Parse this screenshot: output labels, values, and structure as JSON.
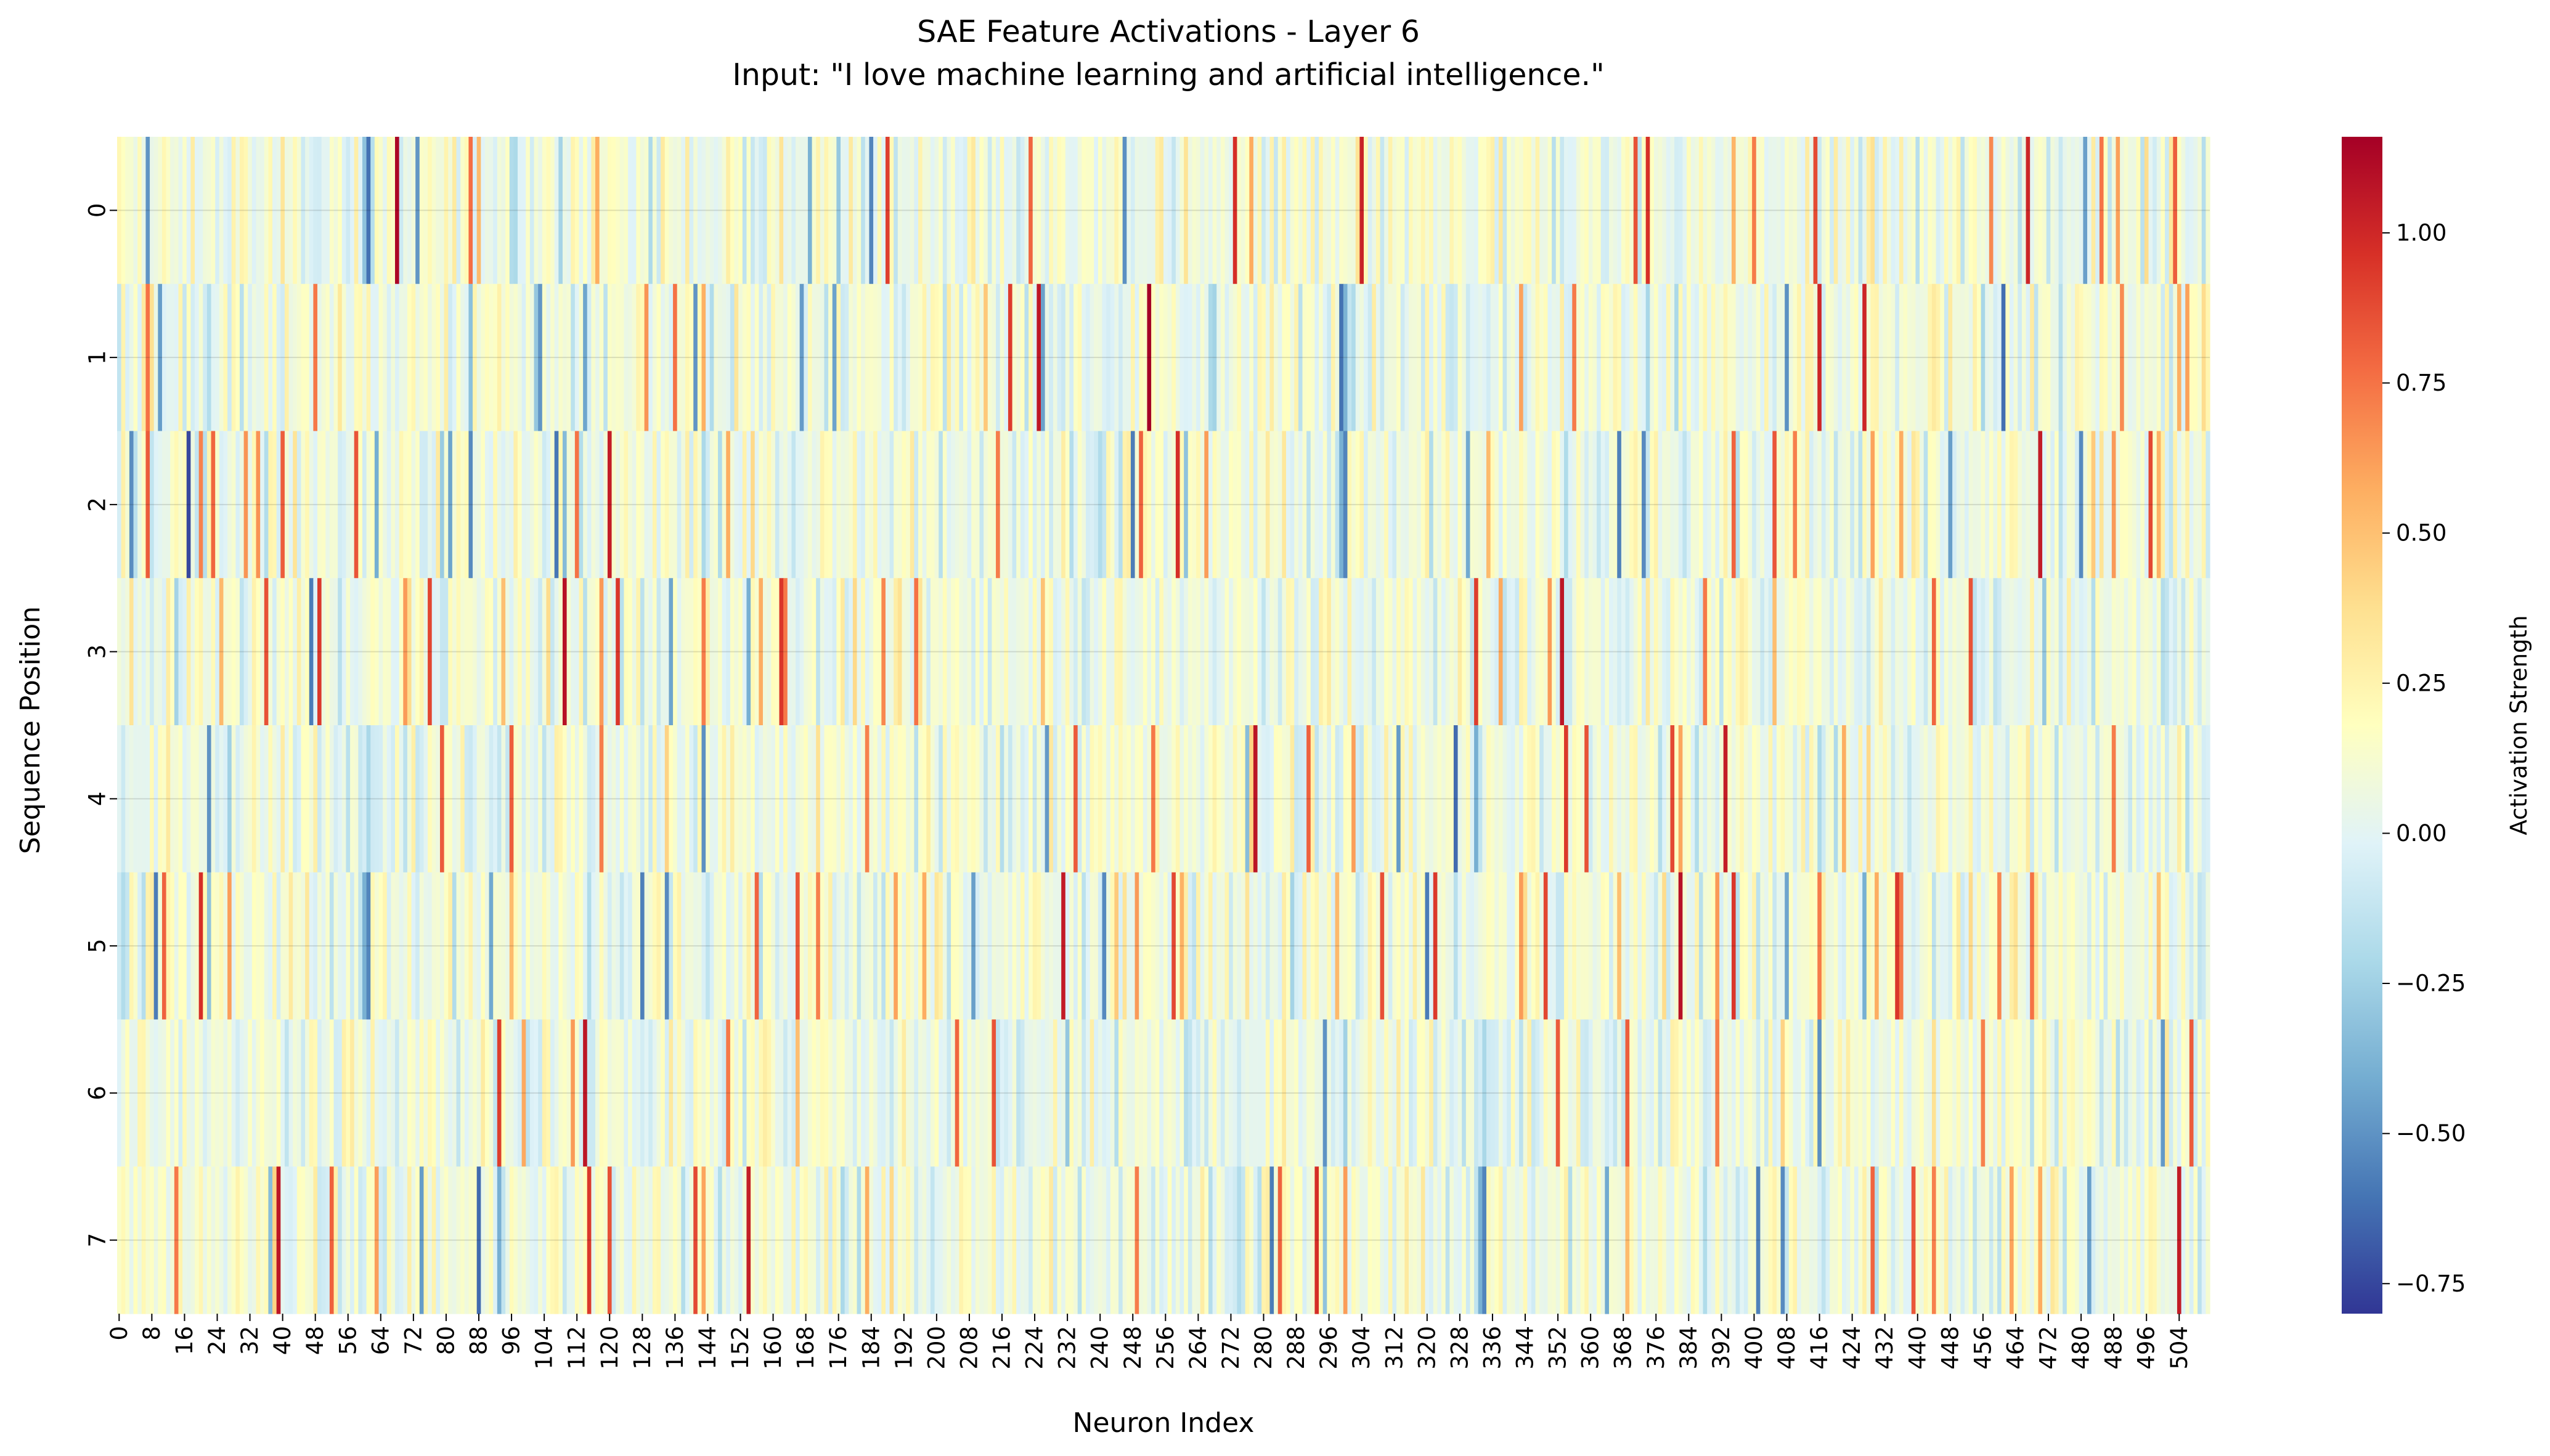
{
  "chart_data": {
    "type": "heatmap",
    "title_line1": "SAE Feature Activations - Layer 6",
    "title_line2": "Input: \"I love machine learning and artificial intelligence.\"",
    "xlabel": "Neuron Index",
    "ylabel": "Sequence Position",
    "colorbar_label": "Activation Strength",
    "colormap": "RdYlBu_r",
    "rows": [
      0,
      1,
      2,
      3,
      4,
      5,
      6,
      7
    ],
    "n_columns": 512,
    "x_ticks": [
      0,
      8,
      16,
      24,
      32,
      40,
      48,
      56,
      64,
      72,
      80,
      88,
      96,
      104,
      112,
      120,
      128,
      136,
      144,
      152,
      160,
      168,
      176,
      184,
      192,
      200,
      208,
      216,
      224,
      232,
      240,
      248,
      256,
      264,
      272,
      280,
      288,
      296,
      304,
      312,
      320,
      328,
      336,
      344,
      352,
      360,
      368,
      376,
      384,
      392,
      400,
      408,
      416,
      424,
      432,
      440,
      448,
      456,
      464,
      472,
      480,
      488,
      496,
      504
    ],
    "vmin": -0.8,
    "vmax": 1.16,
    "colorbar_ticks": [
      "1.00",
      "0.75",
      "0.50",
      "0.25",
      "0.00",
      "−0.25",
      "−0.50",
      "−0.75"
    ],
    "colorbar_tick_values": [
      1.0,
      0.75,
      0.5,
      0.25,
      0.0,
      -0.25,
      -0.5,
      -0.75
    ],
    "grid": true,
    "values": []
  }
}
